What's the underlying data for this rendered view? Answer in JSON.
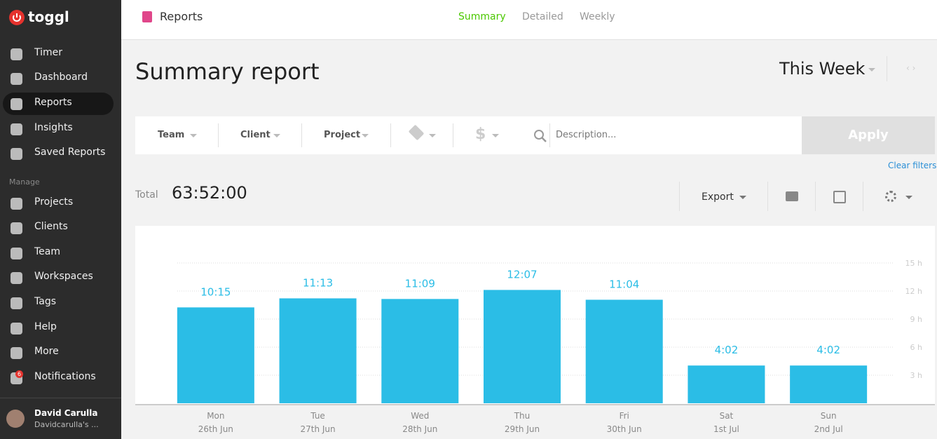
{
  "sidebar": {
    "logo": "toggl",
    "nav": [
      "Timer",
      "Dashboard",
      "Reports",
      "Insights",
      "Saved Reports"
    ],
    "active_index": 2,
    "manage_heading": "Manage",
    "manage": [
      "Projects",
      "Clients",
      "Team",
      "Workspaces",
      "Tags",
      "Help",
      "More",
      "Notifications"
    ],
    "notification_count": 6,
    "user": {
      "name": "David Carulla",
      "workspace": "Davidcarulla's ..."
    }
  },
  "header": {
    "section": "Reports",
    "tabs": [
      "Summary",
      "Detailed",
      "Weekly"
    ],
    "active_tab": 0
  },
  "page": {
    "title": "Summary report",
    "period": "This Week"
  },
  "filters": {
    "items": [
      "Team",
      "Client",
      "Project"
    ],
    "search_placeholder": "Description...",
    "apply": "Apply",
    "clear": "Clear filters"
  },
  "total": {
    "label": "Total",
    "value": "63:52:00"
  },
  "toolbar": {
    "export": "Export"
  },
  "chart_data": {
    "type": "bar",
    "categories": [
      "Mon",
      "Tue",
      "Wed",
      "Thu",
      "Fri",
      "Sat",
      "Sun"
    ],
    "dates": [
      "26th Jun",
      "27th Jun",
      "28th Jun",
      "29th Jun",
      "30th Jun",
      "1st Jul",
      "2nd Jul"
    ],
    "values": [
      10.25,
      11.216667,
      11.15,
      12.116667,
      11.066667,
      4.033333,
      4.033333
    ],
    "value_labels": [
      "10:15",
      "11:13",
      "11:09",
      "12:07",
      "11:04",
      "4:02",
      "4:02"
    ],
    "color": "#2bbde6",
    "ylim": [
      0,
      15
    ],
    "yticks": [
      {
        "value": 3,
        "label": "3 h"
      },
      {
        "value": 6,
        "label": "6 h"
      },
      {
        "value": 9,
        "label": "9 h"
      },
      {
        "value": 12,
        "label": "12 h"
      },
      {
        "value": 15,
        "label": "15 h"
      }
    ],
    "grid": true
  }
}
